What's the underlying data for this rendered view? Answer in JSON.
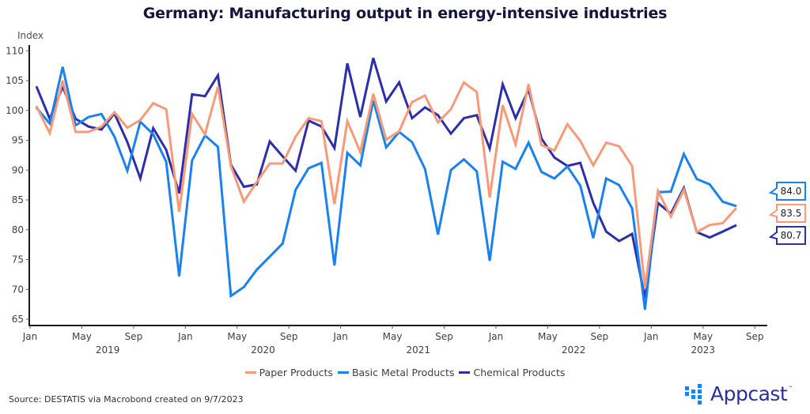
{
  "chart_data": {
    "type": "line",
    "title": "Germany: Manufacturing output in energy-intensive industries",
    "ylabel": "Index",
    "xlabel": "",
    "ylim": [
      64,
      111
    ],
    "yticks": [
      65,
      70,
      75,
      80,
      85,
      90,
      95,
      100,
      105,
      110
    ],
    "x_start": "2019-01",
    "x_tick_labels": [
      "Jan",
      "May",
      "Sep",
      "Jan",
      "May",
      "Sep",
      "Jan",
      "May",
      "Sep",
      "Jan",
      "May",
      "Sep",
      "Jan",
      "May",
      "Sep"
    ],
    "x_tick_months": [
      0,
      4,
      8,
      12,
      16,
      20,
      24,
      28,
      32,
      36,
      40,
      44,
      48,
      52,
      56
    ],
    "year_labels": [
      {
        "label": "2019",
        "month": 6
      },
      {
        "label": "2020",
        "month": 18
      },
      {
        "label": "2021",
        "month": 30
      },
      {
        "label": "2022",
        "month": 42
      },
      {
        "label": "2023",
        "month": 52
      }
    ],
    "grid": false,
    "legend_position": "bottom-center",
    "series": [
      {
        "name": "Paper Products",
        "color": "#f79a78",
        "last_value_label": "83.5",
        "values": [
          100.6,
          96.2,
          105.0,
          96.4,
          96.4,
          97.3,
          99.7,
          97.1,
          98.4,
          101.2,
          100.2,
          83.0,
          99.4,
          96.0,
          104.0,
          90.7,
          84.7,
          88.0,
          91.1,
          91.1,
          95.6,
          98.7,
          98.2,
          84.3,
          98.2,
          93.0,
          102.8,
          95.1,
          96.5,
          101.4,
          102.5,
          98.0,
          100.2,
          104.7,
          103.1,
          85.4,
          100.9,
          94.3,
          104.4,
          94.2,
          93.3,
          97.7,
          94.9,
          90.8,
          94.6,
          94.0,
          90.7,
          70.2,
          86.5,
          82.2,
          86.7,
          79.6,
          80.8,
          81.1,
          83.5
        ]
      },
      {
        "name": "Basic Metal Products",
        "color": "#1a82f0",
        "last_value_label": "84.0",
        "values": [
          100.4,
          97.8,
          107.3,
          97.5,
          98.9,
          99.4,
          95.6,
          89.9,
          98.1,
          96.0,
          91.4,
          72.2,
          91.6,
          95.8,
          93.9,
          68.9,
          70.4,
          73.3,
          75.5,
          77.7,
          86.7,
          90.3,
          91.2,
          74.0,
          92.9,
          90.8,
          101.7,
          93.8,
          96.4,
          94.7,
          90.2,
          79.2,
          90.0,
          91.8,
          89.8,
          74.8,
          91.4,
          90.2,
          94.6,
          89.7,
          88.6,
          90.6,
          87.4,
          78.6,
          88.6,
          87.5,
          83.6,
          66.6,
          86.3,
          86.4,
          92.7,
          88.5,
          87.6,
          84.7,
          84.0
        ]
      },
      {
        "name": "Chemical Products",
        "color": "#2c2fa8",
        "last_value_label": "80.7",
        "values": [
          103.9,
          98.6,
          104.0,
          98.6,
          97.3,
          96.8,
          99.5,
          94.7,
          88.6,
          97.0,
          93.4,
          86.1,
          102.7,
          102.4,
          105.9,
          90.9,
          87.2,
          87.6,
          94.8,
          92.3,
          89.9,
          98.3,
          97.3,
          93.7,
          107.9,
          98.9,
          108.8,
          101.5,
          104.7,
          98.7,
          100.5,
          99.2,
          96.1,
          98.7,
          99.2,
          93.6,
          104.4,
          98.7,
          103.5,
          95.3,
          92.1,
          90.7,
          91.2,
          84.5,
          79.7,
          78.1,
          79.3,
          68.5,
          84.5,
          82.7,
          87.0,
          79.6,
          78.7,
          79.7,
          80.7
        ]
      }
    ]
  },
  "footer": {
    "source": "Source: DESTATIS via Macrobond created on 9/7/2023",
    "logo_text": "Appcast",
    "logo_tm": "™"
  }
}
